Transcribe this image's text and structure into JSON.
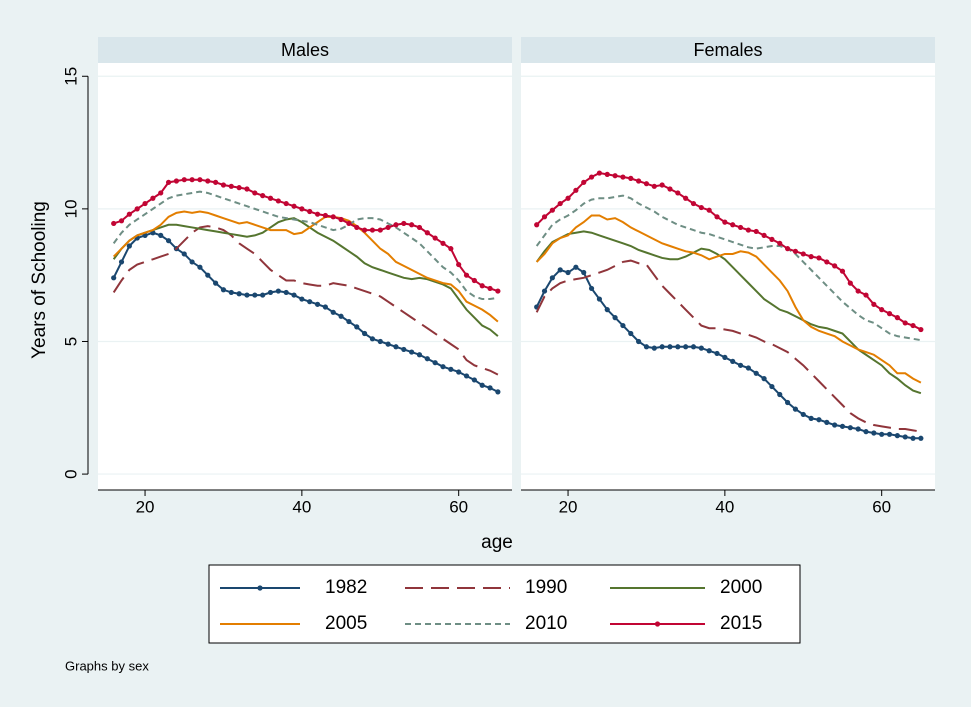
{
  "chart_data": [
    {
      "type": "line",
      "title": "Males",
      "y_label": "Years of Schooling",
      "x_label": "age",
      "note": "Graphs by sex",
      "x": [
        16,
        17,
        18,
        19,
        20,
        21,
        22,
        23,
        24,
        25,
        26,
        27,
        28,
        29,
        30,
        31,
        32,
        33,
        34,
        35,
        36,
        37,
        38,
        39,
        40,
        41,
        42,
        43,
        44,
        45,
        46,
        47,
        48,
        49,
        50,
        51,
        52,
        53,
        54,
        55,
        56,
        57,
        58,
        59,
        60,
        61,
        62,
        63,
        64,
        65
      ],
      "xlim": [
        14,
        66.8
      ],
      "xticks": [
        20,
        40,
        60
      ],
      "ylim": [
        -0.6,
        15.5
      ],
      "yticks": [
        0,
        5,
        10,
        15
      ],
      "grid": true,
      "series": [
        {
          "name": "1982",
          "color": "#1a476f",
          "dash": "none",
          "markers": true,
          "values": [
            7.4,
            8.0,
            8.6,
            8.9,
            9.0,
            9.1,
            9.0,
            8.8,
            8.5,
            8.3,
            8.0,
            7.8,
            7.5,
            7.2,
            6.95,
            6.85,
            6.8,
            6.75,
            6.75,
            6.75,
            6.85,
            6.9,
            6.85,
            6.75,
            6.6,
            6.5,
            6.4,
            6.3,
            6.1,
            5.95,
            5.75,
            5.55,
            5.3,
            5.1,
            5.0,
            4.9,
            4.8,
            4.7,
            4.6,
            4.5,
            4.35,
            4.2,
            4.05,
            3.95,
            3.85,
            3.7,
            3.55,
            3.35,
            3.25,
            3.1
          ]
        },
        {
          "name": "1990",
          "color": "#90353b",
          "dash": "18 8",
          "markers": false,
          "values": [
            6.85,
            7.3,
            7.7,
            7.9,
            8.0,
            8.1,
            8.2,
            8.3,
            8.5,
            8.8,
            9.1,
            9.3,
            9.35,
            9.3,
            9.2,
            9.0,
            8.7,
            8.5,
            8.3,
            8.0,
            7.7,
            7.5,
            7.3,
            7.3,
            7.2,
            7.15,
            7.1,
            7.1,
            7.2,
            7.15,
            7.1,
            7.0,
            6.9,
            6.8,
            6.7,
            6.5,
            6.3,
            6.1,
            5.9,
            5.7,
            5.5,
            5.3,
            5.1,
            4.9,
            4.7,
            4.3,
            4.1,
            4.0,
            3.9,
            3.75
          ]
        },
        {
          "name": "2000",
          "color": "#55752f",
          "dash": "none",
          "markers": false,
          "values": [
            8.1,
            8.5,
            8.8,
            9.0,
            9.1,
            9.2,
            9.3,
            9.4,
            9.4,
            9.35,
            9.3,
            9.25,
            9.2,
            9.15,
            9.1,
            9.05,
            9.0,
            8.95,
            9.0,
            9.1,
            9.3,
            9.5,
            9.6,
            9.65,
            9.5,
            9.3,
            9.1,
            8.95,
            8.8,
            8.6,
            8.4,
            8.2,
            7.95,
            7.8,
            7.7,
            7.6,
            7.5,
            7.4,
            7.35,
            7.4,
            7.35,
            7.25,
            7.15,
            7.0,
            6.6,
            6.2,
            5.9,
            5.6,
            5.45,
            5.2
          ]
        },
        {
          "name": "2005",
          "color": "#e37e00",
          "dash": "none",
          "markers": false,
          "values": [
            8.2,
            8.5,
            8.8,
            9.0,
            9.1,
            9.2,
            9.4,
            9.7,
            9.85,
            9.9,
            9.85,
            9.9,
            9.85,
            9.75,
            9.65,
            9.55,
            9.45,
            9.5,
            9.4,
            9.3,
            9.2,
            9.2,
            9.2,
            9.05,
            9.1,
            9.3,
            9.5,
            9.7,
            9.7,
            9.65,
            9.55,
            9.35,
            9.1,
            8.8,
            8.5,
            8.3,
            8.0,
            7.85,
            7.7,
            7.55,
            7.4,
            7.3,
            7.2,
            7.15,
            6.9,
            6.5,
            6.35,
            6.2,
            6.0,
            5.75
          ]
        },
        {
          "name": "2010",
          "color": "#6e8e84",
          "dash": "6 4",
          "markers": false,
          "values": [
            8.7,
            9.1,
            9.4,
            9.6,
            9.8,
            10.0,
            10.2,
            10.4,
            10.5,
            10.55,
            10.6,
            10.65,
            10.6,
            10.5,
            10.4,
            10.3,
            10.2,
            10.1,
            10.0,
            9.9,
            9.8,
            9.7,
            9.65,
            9.6,
            9.55,
            9.5,
            9.4,
            9.3,
            9.2,
            9.25,
            9.4,
            9.6,
            9.65,
            9.65,
            9.6,
            9.45,
            9.3,
            9.1,
            8.9,
            8.7,
            8.4,
            8.1,
            7.8,
            7.6,
            7.3,
            6.9,
            6.7,
            6.6,
            6.6,
            6.65
          ]
        },
        {
          "name": "2015",
          "color": "#c10534",
          "dash": "none",
          "markers": true,
          "values": [
            9.45,
            9.55,
            9.8,
            10.0,
            10.2,
            10.4,
            10.6,
            11.0,
            11.05,
            11.1,
            11.1,
            11.1,
            11.05,
            11.0,
            10.9,
            10.85,
            10.8,
            10.75,
            10.6,
            10.5,
            10.4,
            10.3,
            10.2,
            10.1,
            10.0,
            9.9,
            9.8,
            9.75,
            9.7,
            9.6,
            9.45,
            9.3,
            9.2,
            9.2,
            9.2,
            9.3,
            9.4,
            9.45,
            9.4,
            9.3,
            9.1,
            8.9,
            8.7,
            8.5,
            7.9,
            7.5,
            7.3,
            7.1,
            7.0,
            6.9
          ]
        }
      ]
    },
    {
      "type": "line",
      "title": "Females",
      "x": [
        16,
        17,
        18,
        19,
        20,
        21,
        22,
        23,
        24,
        25,
        26,
        27,
        28,
        29,
        30,
        31,
        32,
        33,
        34,
        35,
        36,
        37,
        38,
        39,
        40,
        41,
        42,
        43,
        44,
        45,
        46,
        47,
        48,
        49,
        50,
        51,
        52,
        53,
        54,
        55,
        56,
        57,
        58,
        59,
        60,
        61,
        62,
        63,
        64,
        65
      ],
      "xlim": [
        14,
        66.8
      ],
      "xticks": [
        20,
        40,
        60
      ],
      "ylim": [
        -0.6,
        15.5
      ],
      "yticks": [
        0,
        5,
        10,
        15
      ],
      "grid": true,
      "series": [
        {
          "color": "#1a476f",
          "dash": "none",
          "markers": true,
          "values": [
            6.3,
            6.9,
            7.4,
            7.7,
            7.6,
            7.8,
            7.6,
            7.0,
            6.6,
            6.2,
            5.9,
            5.6,
            5.3,
            5.0,
            4.8,
            4.75,
            4.8,
            4.8,
            4.8,
            4.8,
            4.8,
            4.75,
            4.65,
            4.55,
            4.4,
            4.25,
            4.1,
            4.0,
            3.8,
            3.6,
            3.3,
            3.0,
            2.7,
            2.45,
            2.25,
            2.1,
            2.05,
            1.95,
            1.85,
            1.8,
            1.75,
            1.7,
            1.6,
            1.55,
            1.5,
            1.5,
            1.45,
            1.4,
            1.35,
            1.35
          ]
        },
        {
          "color": "#90353b",
          "dash": "18 8",
          "markers": false,
          "values": [
            6.1,
            6.7,
            7.0,
            7.2,
            7.3,
            7.35,
            7.4,
            7.5,
            7.6,
            7.7,
            7.85,
            8.0,
            8.05,
            7.95,
            7.9,
            7.5,
            7.1,
            6.8,
            6.5,
            6.2,
            5.9,
            5.6,
            5.5,
            5.5,
            5.45,
            5.4,
            5.3,
            5.25,
            5.15,
            5.0,
            4.9,
            4.75,
            4.6,
            4.35,
            4.1,
            3.8,
            3.5,
            3.2,
            2.9,
            2.6,
            2.3,
            2.1,
            1.95,
            1.85,
            1.8,
            1.75,
            1.7,
            1.7,
            1.65,
            1.6
          ]
        },
        {
          "color": "#55752f",
          "dash": "none",
          "markers": false,
          "values": [
            8.0,
            8.4,
            8.75,
            8.9,
            9.05,
            9.1,
            9.15,
            9.1,
            9.0,
            8.9,
            8.8,
            8.7,
            8.6,
            8.45,
            8.35,
            8.25,
            8.15,
            8.1,
            8.1,
            8.2,
            8.35,
            8.5,
            8.45,
            8.3,
            8.1,
            7.8,
            7.5,
            7.2,
            6.9,
            6.6,
            6.4,
            6.2,
            6.1,
            5.95,
            5.8,
            5.65,
            5.55,
            5.5,
            5.4,
            5.3,
            5.0,
            4.7,
            4.5,
            4.3,
            4.1,
            3.8,
            3.6,
            3.35,
            3.15,
            3.05
          ]
        },
        {
          "color": "#e37e00",
          "dash": "none",
          "markers": false,
          "values": [
            8.0,
            8.3,
            8.7,
            8.9,
            9.0,
            9.3,
            9.5,
            9.75,
            9.75,
            9.6,
            9.65,
            9.5,
            9.3,
            9.15,
            9.0,
            8.85,
            8.7,
            8.6,
            8.5,
            8.4,
            8.35,
            8.25,
            8.1,
            8.2,
            8.3,
            8.3,
            8.4,
            8.35,
            8.2,
            7.9,
            7.6,
            7.3,
            6.9,
            6.3,
            5.8,
            5.55,
            5.4,
            5.3,
            5.2,
            5.0,
            4.85,
            4.7,
            4.6,
            4.5,
            4.3,
            4.1,
            3.8,
            3.8,
            3.6,
            3.45
          ]
        },
        {
          "color": "#6e8e84",
          "dash": "6 4",
          "markers": false,
          "values": [
            8.6,
            9.0,
            9.4,
            9.6,
            9.75,
            9.95,
            10.2,
            10.35,
            10.4,
            10.4,
            10.45,
            10.5,
            10.4,
            10.2,
            10.05,
            9.9,
            9.7,
            9.55,
            9.4,
            9.3,
            9.2,
            9.1,
            9.05,
            8.95,
            8.85,
            8.75,
            8.65,
            8.55,
            8.5,
            8.55,
            8.6,
            8.6,
            8.5,
            8.3,
            8.0,
            7.7,
            7.4,
            7.1,
            6.8,
            6.5,
            6.25,
            6.0,
            5.8,
            5.7,
            5.5,
            5.3,
            5.2,
            5.15,
            5.1,
            5.05
          ]
        },
        {
          "color": "#c10534",
          "dash": "none",
          "markers": true,
          "values": [
            9.4,
            9.7,
            9.95,
            10.2,
            10.4,
            10.7,
            11.0,
            11.2,
            11.35,
            11.3,
            11.25,
            11.2,
            11.15,
            11.05,
            10.95,
            10.85,
            10.9,
            10.75,
            10.6,
            10.4,
            10.2,
            10.05,
            9.95,
            9.7,
            9.5,
            9.4,
            9.3,
            9.2,
            9.15,
            9.0,
            8.85,
            8.7,
            8.5,
            8.4,
            8.3,
            8.2,
            8.15,
            8.0,
            7.85,
            7.65,
            7.2,
            6.9,
            6.75,
            6.4,
            6.2,
            6.05,
            5.9,
            5.7,
            5.6,
            5.45
          ]
        }
      ]
    }
  ]
}
